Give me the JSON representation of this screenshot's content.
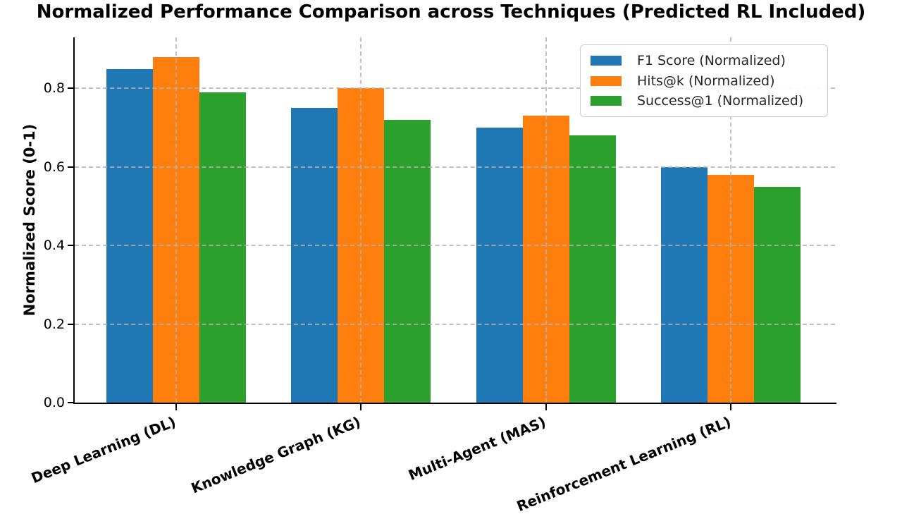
{
  "title": "Normalized Performance Comparison across Techniques (Predicted RL Included)",
  "chart_data": {
    "type": "bar",
    "title": "Normalized Performance Comparison across Techniques (Predicted RL Included)",
    "xlabel": "",
    "ylabel": "Normalized Score (0-1)",
    "categories": [
      "Deep Learning (DL)",
      "Knowledge Graph (KG)",
      "Multi-Agent (MAS)",
      "Reinforcement Learning (RL)"
    ],
    "series": [
      {
        "name": "F1 Score (Normalized)",
        "color": "#1f77b4",
        "values": [
          0.85,
          0.75,
          0.7,
          0.6
        ]
      },
      {
        "name": "Hits@k (Normalized)",
        "color": "#ff7f0e",
        "values": [
          0.88,
          0.8,
          0.73,
          0.58
        ]
      },
      {
        "name": "Success@1 (Normalized)",
        "color": "#2ca02c",
        "values": [
          0.79,
          0.72,
          0.68,
          0.55
        ]
      }
    ],
    "yticks": [
      0.0,
      0.2,
      0.4,
      0.6,
      0.8
    ],
    "ytick_labels": [
      "0.0",
      "0.2",
      "0.4",
      "0.6",
      "0.8"
    ],
    "ylim": [
      0,
      0.93
    ],
    "grid": {
      "linestyle": "dashed",
      "axes": "both",
      "drawn_above_bars": true,
      "color": "#b2b2b2"
    },
    "legend": {
      "position": "upper right"
    },
    "x_label_rotation_deg": 22
  }
}
